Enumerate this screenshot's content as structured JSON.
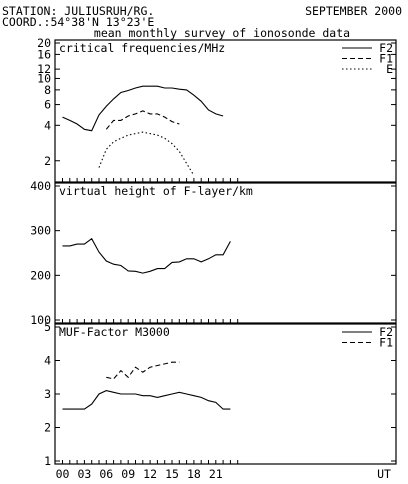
{
  "header": {
    "station": "STATION: JULIUSRUH/RG.",
    "coord": "COORD.:54°38'N 13°23'E",
    "date": "SEPTEMBER 2000",
    "subtitle": "mean monthly survey of ionosonde data"
  },
  "x_axis": {
    "tick_labels": [
      "00",
      "03",
      "06",
      "09",
      "12",
      "15",
      "18",
      "21",
      "UT"
    ]
  },
  "chart_data": [
    {
      "type": "line",
      "title": "critical frequencies/MHz",
      "y_scale": "log",
      "ylim": [
        1.4,
        20
      ],
      "y_ticks": [
        2,
        4,
        6,
        8,
        10,
        12,
        16,
        20
      ],
      "x": [
        0,
        1,
        2,
        3,
        4,
        5,
        6,
        7,
        8,
        9,
        10,
        11,
        12,
        13,
        14,
        15,
        16,
        17,
        18,
        19,
        20,
        21,
        22,
        23
      ],
      "legend_position": "top-right",
      "series": [
        {
          "name": "F2",
          "style": "solid",
          "values": [
            4.7,
            4.4,
            4.1,
            3.7,
            3.6,
            4.9,
            5.8,
            6.7,
            7.6,
            7.9,
            8.3,
            8.6,
            8.6,
            8.6,
            8.3,
            8.3,
            8.1,
            8.0,
            7.2,
            6.4,
            5.4,
            5.0,
            4.8,
            null
          ]
        },
        {
          "name": "F1",
          "style": "dashed",
          "values": [
            null,
            null,
            null,
            null,
            null,
            null,
            3.7,
            4.4,
            4.4,
            4.8,
            5.0,
            5.3,
            5.0,
            5.0,
            4.7,
            4.3,
            4.1,
            null,
            null,
            null,
            null,
            null,
            null,
            null
          ]
        },
        {
          "name": "E",
          "style": "dotted",
          "values": [
            null,
            null,
            null,
            null,
            null,
            1.75,
            2.5,
            2.9,
            3.1,
            3.3,
            3.4,
            3.5,
            3.4,
            3.3,
            3.1,
            2.8,
            2.4,
            1.9,
            1.5,
            null,
            null,
            null,
            null,
            null
          ]
        }
      ]
    },
    {
      "type": "line",
      "title": "virtual height of F-layer/km",
      "ylim": [
        100,
        400
      ],
      "y_ticks": [
        100,
        200,
        300,
        400
      ],
      "x": [
        0,
        1,
        2,
        3,
        4,
        5,
        6,
        7,
        8,
        9,
        10,
        11,
        12,
        13,
        14,
        15,
        16,
        17,
        18,
        19,
        20,
        21,
        22,
        23
      ],
      "series": [
        {
          "name": "",
          "style": "solid",
          "values": [
            266,
            266,
            270,
            270,
            282,
            252,
            232,
            225,
            222,
            210,
            209,
            205,
            209,
            215,
            215,
            229,
            230,
            237,
            237,
            230,
            237,
            246,
            246,
            276
          ]
        }
      ]
    },
    {
      "type": "line",
      "title": "MUF-Factor M3000",
      "ylim": [
        1,
        5
      ],
      "y_ticks": [
        1,
        2,
        3,
        4,
        5
      ],
      "x": [
        0,
        1,
        2,
        3,
        4,
        5,
        6,
        7,
        8,
        9,
        10,
        11,
        12,
        13,
        14,
        15,
        16,
        17,
        18,
        19,
        20,
        21,
        22,
        23
      ],
      "legend_position": "top-right",
      "series": [
        {
          "name": "F2",
          "style": "solid",
          "values": [
            2.55,
            2.55,
            2.55,
            2.55,
            2.7,
            3.0,
            3.1,
            3.05,
            3.0,
            3.0,
            3.0,
            2.95,
            2.95,
            2.9,
            2.95,
            3.0,
            3.05,
            3.0,
            2.95,
            2.9,
            2.8,
            2.75,
            2.55,
            2.55
          ]
        },
        {
          "name": "F1",
          "style": "dashed",
          "values": [
            null,
            null,
            null,
            null,
            null,
            null,
            3.5,
            3.45,
            3.7,
            3.5,
            3.8,
            3.65,
            3.8,
            3.85,
            3.9,
            3.95,
            3.95,
            null,
            null,
            null,
            null,
            null,
            null,
            null
          ]
        }
      ]
    }
  ]
}
